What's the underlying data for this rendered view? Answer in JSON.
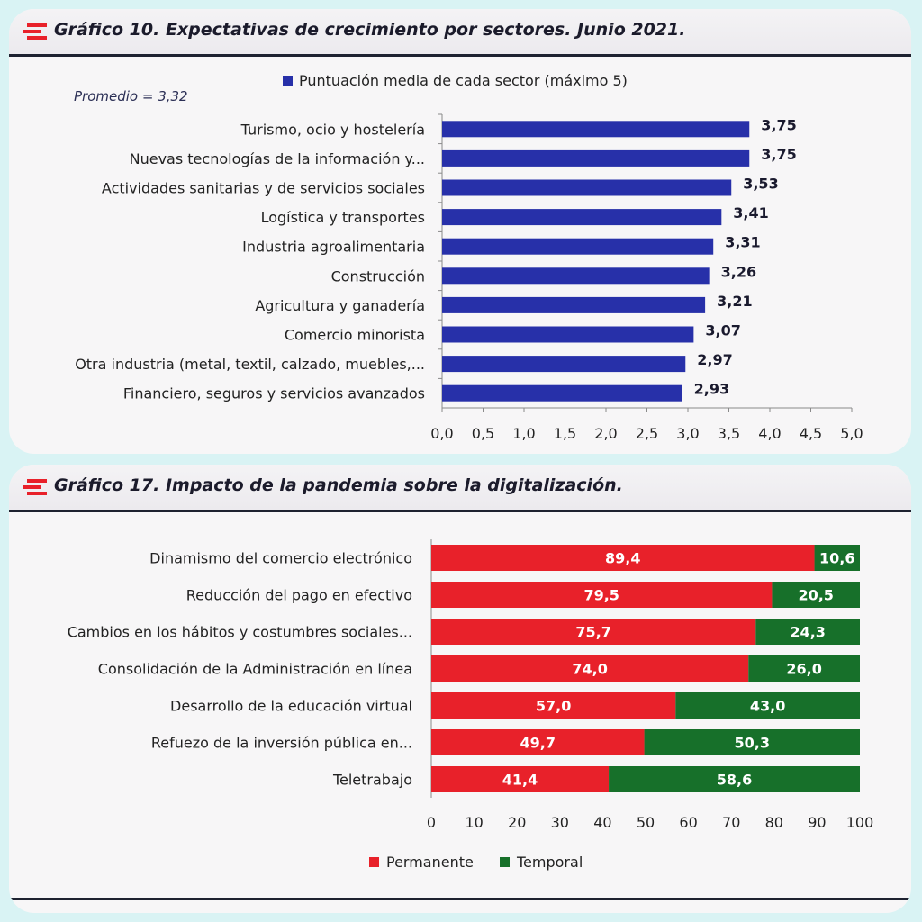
{
  "chart_data": [
    {
      "type": "bar",
      "orientation": "horizontal",
      "title": "Gráfico 10. Expectativas de crecimiento por sectores. Junio 2021.",
      "annotation": "Promedio = 3,32",
      "categories": [
        "Turismo, ocio y hostelería",
        "Nuevas tecnologías de la información y...",
        "Actividades sanitarias y de servicios sociales",
        "Logística y transportes",
        "Industria agroalimentaria",
        "Construcción",
        "Agricultura y ganadería",
        "Comercio minorista",
        "Otra industria (metal, textil, calzado, muebles,...",
        "Financiero, seguros y servicios avanzados"
      ],
      "series": [
        {
          "name": "Puntuación media de cada sector (máximo 5)",
          "values": [
            3.75,
            3.75,
            3.53,
            3.41,
            3.31,
            3.26,
            3.21,
            3.07,
            2.97,
            2.93
          ],
          "labels": [
            "3,75",
            "3,75",
            "3,53",
            "3,41",
            "3,31",
            "3,26",
            "3,21",
            "3,07",
            "2,97",
            "2,93"
          ],
          "color": "#2730a9"
        }
      ],
      "xlim": [
        0,
        5
      ],
      "xticks": [
        "0,0",
        "0,5",
        "1,0",
        "1,5",
        "2,0",
        "2,5",
        "3,0",
        "3,5",
        "4,0",
        "4,5",
        "5,0"
      ],
      "legend_position": "top",
      "grid": false
    },
    {
      "type": "bar",
      "orientation": "horizontal",
      "stacked": true,
      "title": "Gráfico 17. Impacto de la pandemia sobre la digitalización.",
      "categories": [
        "Dinamismo del comercio electrónico",
        "Reducción del pago en efectivo",
        "Cambios en los hábitos y costumbres sociales...",
        "Consolidación de la Administración en línea",
        "Desarrollo de la educación virtual",
        "Refuezo de la inversión pública en...",
        "Teletrabajo"
      ],
      "series": [
        {
          "name": "Permanente",
          "values": [
            89.4,
            79.5,
            75.7,
            74.0,
            57.0,
            49.7,
            41.4
          ],
          "labels": [
            "89,4",
            "79,5",
            "75,7",
            "74,0",
            "57,0",
            "49,7",
            "41,4"
          ],
          "color": "#e8212a"
        },
        {
          "name": "Temporal",
          "values": [
            10.6,
            20.5,
            24.3,
            26.0,
            43.0,
            50.3,
            58.6
          ],
          "labels": [
            "10,6",
            "20,5",
            "24,3",
            "26,0",
            "43,0",
            "50,3",
            "58,6"
          ],
          "color": "#17702a"
        }
      ],
      "xlim": [
        0,
        100
      ],
      "xticks": [
        "0",
        "10",
        "20",
        "30",
        "40",
        "50",
        "60",
        "70",
        "80",
        "90",
        "100"
      ],
      "legend_position": "bottom",
      "grid": false
    }
  ],
  "colors": {
    "header_rule": "#1e2230",
    "logo": "#e8212a",
    "background": "#d9f3f4"
  },
  "icons": {
    "logo": "red-stripes-icon"
  }
}
